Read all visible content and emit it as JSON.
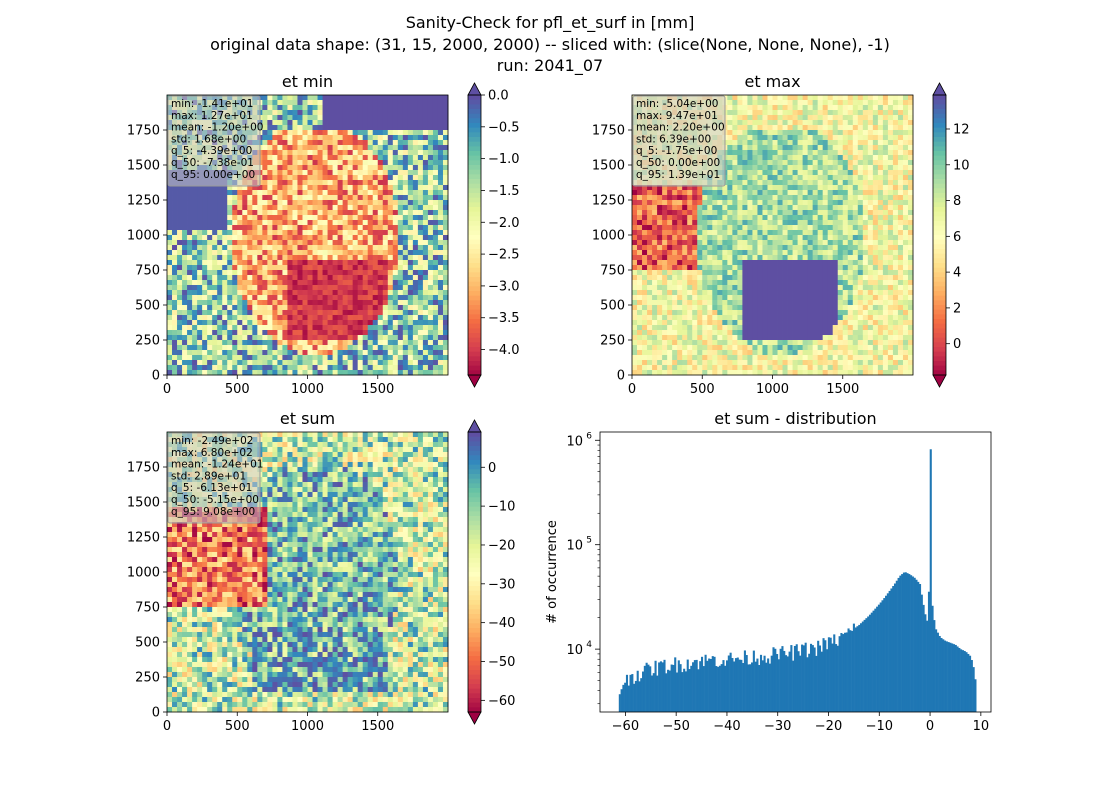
{
  "figure": {
    "title_lines": [
      "Sanity-Check for pfl_et_surf in [mm]",
      "original data shape: (31, 15, 2000, 2000) -- sliced with: (slice(None, None, None), -1)",
      "run: 2041_07"
    ]
  },
  "chart_data": [
    {
      "type": "heatmap",
      "title": "et min",
      "xlim": [
        0,
        2000
      ],
      "ylim": [
        0,
        2000
      ],
      "xticks": [
        0,
        500,
        1000,
        1500
      ],
      "yticks": [
        0,
        250,
        500,
        750,
        1000,
        1250,
        1500,
        1750
      ],
      "colormap": "Spectral",
      "colorbar": {
        "min": -4.4,
        "max": 0.0,
        "ticks": [
          0.0,
          -0.5,
          -1.0,
          -1.5,
          -2.0,
          -2.5,
          -3.0,
          -3.5,
          -4.0
        ],
        "tick_labels": [
          "0.0",
          "−0.5",
          "−1.0",
          "−1.5",
          "−2.0",
          "−2.5",
          "−3.0",
          "−3.5",
          "−4.0"
        ],
        "extend": "both"
      },
      "stats": [
        "min: -1.41e+01",
        "max: 1.27e+01",
        "mean: -1.20e+00",
        "std: 1.68e+00",
        "q_5: -4.39e+00",
        "q_50: -7.38e-01",
        "q_95: 0.00e+00"
      ]
    },
    {
      "type": "heatmap",
      "title": "et max",
      "xlim": [
        0,
        2000
      ],
      "ylim": [
        0,
        2000
      ],
      "xticks": [
        0,
        500,
        1000,
        1500
      ],
      "yticks": [
        0,
        250,
        500,
        750,
        1000,
        1250,
        1500,
        1750
      ],
      "colormap": "Spectral",
      "colorbar": {
        "min": -1.75,
        "max": 13.9,
        "ticks": [
          12,
          10,
          8,
          6,
          4,
          2,
          0
        ],
        "tick_labels": [
          "12",
          "10",
          "8",
          "6",
          "4",
          "2",
          "0"
        ],
        "extend": "both"
      },
      "stats": [
        "min: -5.04e+00",
        "max: 9.47e+01",
        "mean: 2.20e+00",
        "std: 6.39e+00",
        "q_5: -1.75e+00",
        "q_50: 0.00e+00",
        "q_95: 1.39e+01"
      ]
    },
    {
      "type": "heatmap",
      "title": "et sum",
      "xlim": [
        0,
        2000
      ],
      "ylim": [
        0,
        2000
      ],
      "xticks": [
        0,
        500,
        1000,
        1500
      ],
      "yticks": [
        0,
        250,
        500,
        750,
        1000,
        1250,
        1500,
        1750
      ],
      "colormap": "Spectral",
      "colorbar": {
        "min": -63,
        "max": 9.08,
        "ticks": [
          0,
          -10,
          -20,
          -30,
          -40,
          -50,
          -60
        ],
        "tick_labels": [
          "0",
          "−10",
          "−20",
          "−30",
          "−40",
          "−50",
          "−60"
        ],
        "extend": "both"
      },
      "stats": [
        "min: -2.49e+02",
        "max: 6.80e+02",
        "mean: -1.24e+01",
        "std: 2.89e+01",
        "q_5: -6.13e+01",
        "q_50: -5.15e+00",
        "q_95: 9.08e+00"
      ]
    },
    {
      "type": "bar",
      "title": "et sum - distribution",
      "ylabel": "# of occurrence",
      "yscale": "log",
      "xlim": [
        -65,
        12
      ],
      "ylim": [
        2500,
        1200000
      ],
      "xticks": [
        -60,
        -50,
        -40,
        -30,
        -20,
        -10,
        0,
        10
      ],
      "xtick_labels": [
        "−60",
        "−50",
        "−40",
        "−30",
        "−20",
        "−10",
        "0",
        "10"
      ],
      "yticks_major": [
        10000,
        100000,
        1000000
      ],
      "ytick_labels": [
        "10",
        "10",
        "10"
      ],
      "ytick_exponents": [
        "4",
        "5",
        "6"
      ],
      "color": "#1f77b4",
      "bin_range": [
        -61.3,
        9.08
      ],
      "profile_x": [
        -61.3,
        -60.5,
        -59,
        -57,
        -55,
        -52,
        -50,
        -47,
        -45,
        -42,
        -40,
        -37,
        -35,
        -32,
        -30,
        -27,
        -25,
        -22,
        -20,
        -18,
        -16,
        -14,
        -12,
        -10,
        -9,
        -8,
        -7,
        -6,
        -5,
        -4,
        -3,
        -2,
        -1.5,
        -1,
        -0.5,
        -0.2,
        0,
        0.3,
        1,
        2,
        3,
        4,
        5,
        6,
        7,
        8,
        8.5,
        9.08
      ],
      "profile_y": [
        3500,
        4500,
        5500,
        6000,
        6500,
        7000,
        7200,
        7500,
        7700,
        8000,
        8000,
        8200,
        8500,
        8700,
        9000,
        9400,
        9800,
        10500,
        11500,
        12500,
        14500,
        17000,
        21000,
        27000,
        31000,
        36000,
        42000,
        50000,
        55000,
        52000,
        48000,
        42000,
        30000,
        22000,
        18000,
        40000,
        820000,
        30000,
        16000,
        13000,
        12000,
        11500,
        11000,
        10000,
        9500,
        8500,
        7000,
        4500
      ]
    }
  ]
}
